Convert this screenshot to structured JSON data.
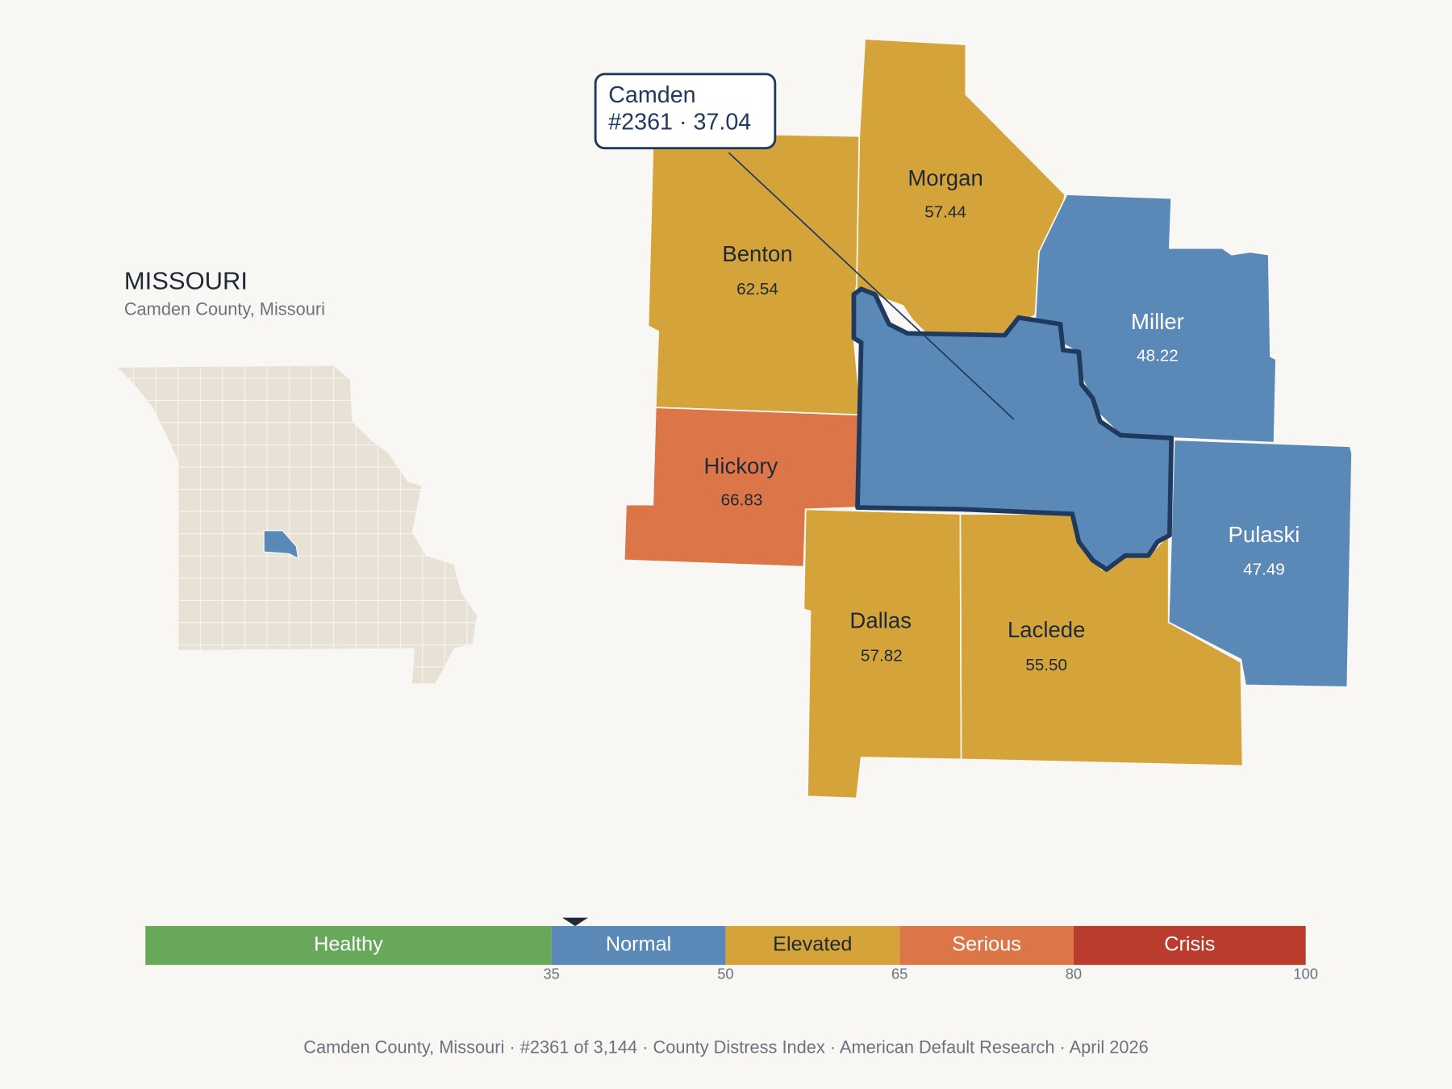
{
  "title": "MISSOURI",
  "subtitle": "Camden County, Missouri",
  "selected": {
    "name": "Camden",
    "label": "#2361 · 37.04",
    "value": 37.04
  },
  "counties": [
    {
      "name": "Benton",
      "value": 62.54
    },
    {
      "name": "Morgan",
      "value": 57.44
    },
    {
      "name": "Miller",
      "value": 48.22
    },
    {
      "name": "Hickory",
      "value": 66.83
    },
    {
      "name": "Dallas",
      "value": 57.82
    },
    {
      "name": "Laclede",
      "value": 55.5,
      "value_label": "55.50"
    },
    {
      "name": "Pulaski",
      "value": 47.49
    }
  ],
  "scale": {
    "lim": [
      0,
      100
    ],
    "ticks": [
      35,
      50,
      65,
      80,
      100
    ],
    "bands": [
      {
        "label": "Healthy",
        "color": "#68a85a"
      },
      {
        "label": "Normal",
        "color": "#5a89b8"
      },
      {
        "label": "Elevated",
        "color": "#d4a43b"
      },
      {
        "label": "Serious",
        "color": "#dc7648"
      },
      {
        "label": "Crisis",
        "color": "#b93c2e"
      }
    ]
  },
  "footer": "Camden County, Missouri  ·  #2361 of 3,144  ·  County Distress Index  ·  American Default Research  ·  April 2026"
}
